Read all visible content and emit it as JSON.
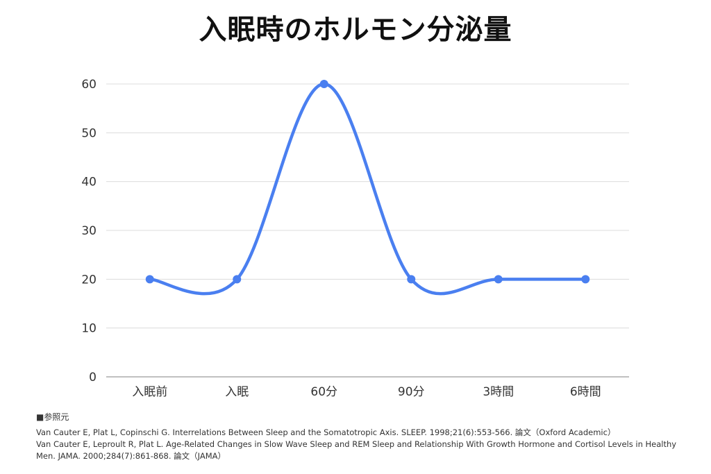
{
  "chart_data": {
    "type": "line",
    "title": "入眠時のホルモン分泌量",
    "categories": [
      "入眠前",
      "入眠",
      "60分",
      "90分",
      "3時間",
      "6時間"
    ],
    "series": [
      {
        "values": [
          20,
          20,
          60,
          20,
          20,
          20
        ]
      }
    ],
    "ylim": [
      0,
      60
    ],
    "yticks": [
      0,
      10,
      20,
      30,
      40,
      50,
      60
    ],
    "grid": true,
    "smooth": true,
    "line_color": "#4a7ff0"
  },
  "source": {
    "heading": "■参照元",
    "references": [
      "Van Cauter E, Plat L, Copinschi G. Interrelations Between Sleep and the Somatotropic Axis. SLEEP. 1998;21(6):553-566. 論文（Oxford Academic）",
      "Van Cauter E, Leproult R, Plat L. Age-Related Changes in Slow Wave Sleep and REM Sleep and Relationship With Growth Hormone and Cortisol Levels in Healthy",
      "Men. JAMA. 2000;284(7):861-868. 論文（JAMA）"
    ]
  }
}
